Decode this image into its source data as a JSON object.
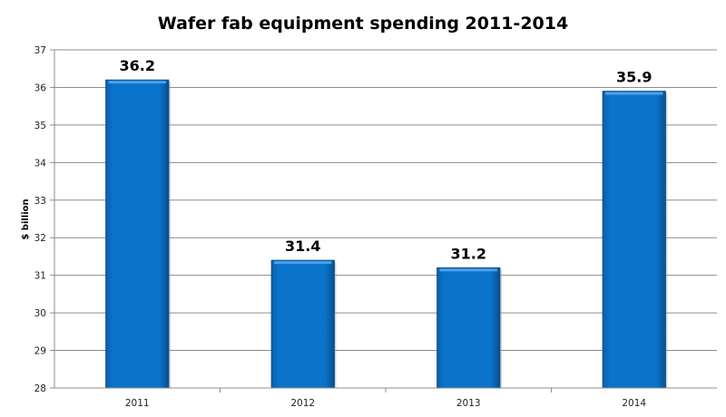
{
  "chart_data": {
    "type": "bar",
    "title": "Wafer fab equipment spending 2011-2014",
    "xlabel": "",
    "ylabel": "$ billion",
    "categories": [
      "2011",
      "2012",
      "2013",
      "2014"
    ],
    "values": [
      36.2,
      31.4,
      31.2,
      35.9
    ],
    "data_labels": [
      "36.2",
      "31.4",
      "31.2",
      "35.9"
    ],
    "ylim": [
      28,
      37
    ],
    "yticks": [
      28,
      29,
      30,
      31,
      32,
      33,
      34,
      35,
      36,
      37
    ],
    "grid": true,
    "legend": "none",
    "bar_color": "#0A72C8"
  }
}
